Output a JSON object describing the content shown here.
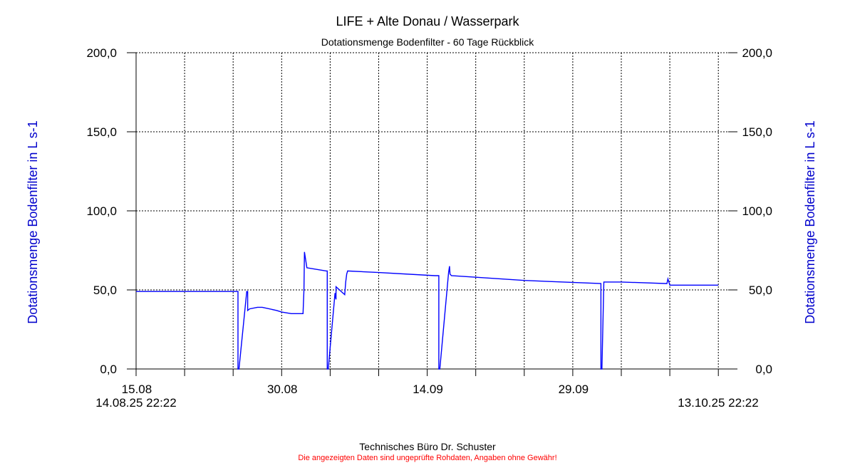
{
  "chart_data": {
    "type": "line",
    "title": "LIFE + Alte Donau / Wasserpark",
    "subtitle": "Dotationsmenge Bodenfilter - 60 Tage Rückblick",
    "ylabel_left": "Dotationsmenge Bodenfilter in L s-1",
    "ylabel_right": "Dotationsmenge Bodenfilter in L s-1",
    "ylim": [
      0,
      200
    ],
    "y_ticks": [
      "0,0",
      "50,0",
      "100,0",
      "150,0",
      "200,0"
    ],
    "x_range_days": [
      0,
      60
    ],
    "x_tick_labels": [
      {
        "day": 0.07,
        "label": "15.08"
      },
      {
        "day": 15.07,
        "label": "30.08"
      },
      {
        "day": 30.07,
        "label": "14.09"
      },
      {
        "day": 45.07,
        "label": "29.09"
      }
    ],
    "range_start_label": "14.08.25 22:22",
    "range_end_label": "13.10.25 22:22",
    "grid": true,
    "line_color": "#0000ff",
    "series": [
      {
        "x": [
          0,
          10.4,
          10.5,
          10.5,
          10.6,
          11.4,
          11.5,
          11.5,
          11.7,
          12.5,
          13,
          14.5,
          15,
          16,
          17.2,
          17.3,
          17.35,
          17.6,
          19.6,
          19.7,
          19.7,
          19.8,
          20.5,
          20.5,
          20.6,
          20.6,
          21.5,
          21.6,
          21.7,
          21.8,
          25,
          30.8,
          31.2,
          31.2,
          31.3,
          32.2,
          32.3,
          32.35,
          32.5,
          35,
          40,
          47.9,
          47.9,
          48,
          48.2,
          50,
          54.7,
          54.8,
          55,
          60
        ],
        "y": [
          49,
          49,
          49,
          0,
          0,
          49,
          49,
          37,
          38,
          39,
          39,
          37,
          36,
          35,
          35,
          50,
          74,
          64,
          62,
          62,
          0,
          0,
          48,
          47,
          44,
          52,
          47,
          55,
          60,
          62,
          61,
          59,
          59,
          0,
          0,
          61,
          65,
          60,
          59,
          58,
          56,
          54,
          0,
          0,
          55,
          55,
          54,
          57,
          53,
          53
        ]
      }
    ]
  },
  "footer": {
    "company": "Technisches Büro Dr. Schuster",
    "disclaimer": "Die angezeigten Daten sind ungeprüfte Rohdaten, Angaben ohne Gewähr!",
    "disclaimer_color": "#ff0000",
    "axis_label_color": "#0000cc"
  }
}
